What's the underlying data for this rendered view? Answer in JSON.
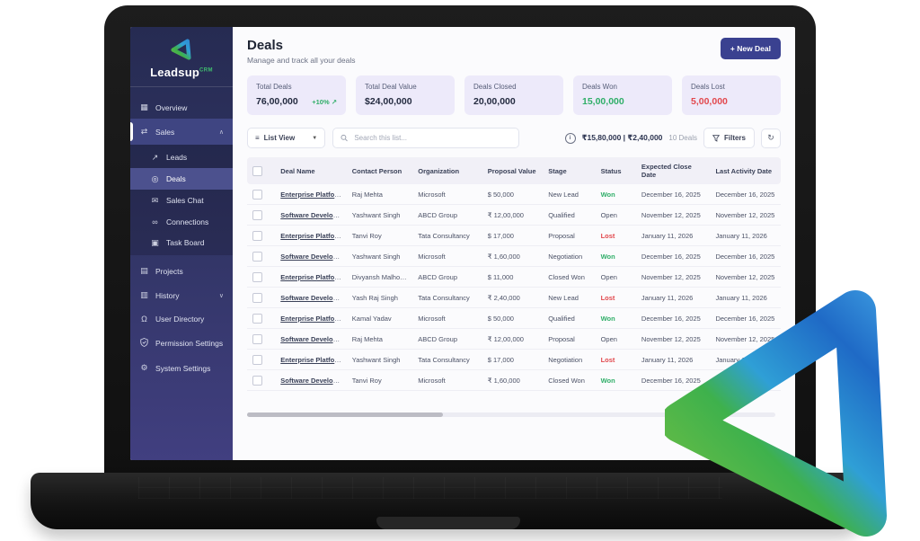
{
  "brand": {
    "name": "Leadsup",
    "suffix": "CRM"
  },
  "sidebar": {
    "items": [
      {
        "label": "Overview",
        "icon": "grid-icon"
      },
      {
        "label": "Sales",
        "icon": "swap-arrows-icon"
      }
    ],
    "sales_submenu": [
      {
        "label": "Leads",
        "icon": "trend-up-icon"
      },
      {
        "label": "Deals",
        "icon": "percent-circle-icon"
      },
      {
        "label": "Sales Chat",
        "icon": "envelope-icon"
      },
      {
        "label": "Connections",
        "icon": "people-icon"
      },
      {
        "label": "Task Board",
        "icon": "board-icon"
      }
    ],
    "secondary": [
      {
        "label": "Projects",
        "icon": "clipboard-icon"
      },
      {
        "label": "History",
        "icon": "clipboard-icon"
      },
      {
        "label": "User Directory",
        "icon": "user-plus-icon"
      },
      {
        "label": "Permission Settings",
        "icon": "shield-icon"
      },
      {
        "label": "System Settings",
        "icon": "gear-icon"
      }
    ]
  },
  "page": {
    "title": "Deals",
    "subtitle": "Manage and track all your deals",
    "new_deal_label": "+  New Deal"
  },
  "stats": [
    {
      "label": "Total Deals",
      "value": "76,00,000",
      "trend": "+10% ↗"
    },
    {
      "label": "Total Deal Value",
      "value": "$24,00,000"
    },
    {
      "label": "Deals Closed",
      "value": "20,00,000"
    },
    {
      "label": "Deals Won",
      "value": "15,00,000",
      "tone": "green"
    },
    {
      "label": "Deals Lost",
      "value": "5,00,000",
      "tone": "red"
    }
  ],
  "toolbar": {
    "view_label": "List View",
    "search_placeholder": "Search this list...",
    "summary": "₹15,80,000  |  ₹2,40,000",
    "count": "10 Deals",
    "filters_label": "Filters"
  },
  "table": {
    "columns": [
      "Deal Name",
      "Contact Person",
      "Organization",
      "Proposal Value",
      "Stage",
      "Status",
      "Expected Close Date",
      "Last Activity Date"
    ],
    "rows": [
      {
        "name": "Enterprise Platform...",
        "contact": "Raj Mehta",
        "org": "Microsoft",
        "value": "$ 50,000",
        "stage": "New Lead",
        "status": "Won",
        "expected": "December 16, 2025",
        "last": "December 16, 2025"
      },
      {
        "name": "Software Developm...",
        "contact": "Yashwant Singh",
        "org": "ABCD Group",
        "value": "₹ 12,00,000",
        "stage": "Qualified",
        "status": "Open",
        "expected": "November 12, 2025",
        "last": "November 12, 2025"
      },
      {
        "name": "Enterprise Platform...",
        "contact": "Tanvi Roy",
        "org": "Tata Consultancy",
        "value": "$ 17,000",
        "stage": "Proposal",
        "status": "Lost",
        "expected": "January 11, 2026",
        "last": "January 11, 2026"
      },
      {
        "name": "Software Developm...",
        "contact": "Yashwant Singh",
        "org": "Microsoft",
        "value": "₹ 1,60,000",
        "stage": "Negotiation",
        "status": "Won",
        "expected": "December 16, 2025",
        "last": "December 16, 2025"
      },
      {
        "name": "Enterprise Platform...",
        "contact": "Divyansh Malhotra",
        "org": "ABCD Group",
        "value": "$ 11,000",
        "stage": "Closed Won",
        "status": "Open",
        "expected": "November 12, 2025",
        "last": "November 12, 2025"
      },
      {
        "name": "Software Developm...",
        "contact": "Yash Raj Singh",
        "org": "Tata Consultancy",
        "value": "₹ 2,40,000",
        "stage": "New Lead",
        "status": "Lost",
        "expected": "January 11, 2026",
        "last": "January 11, 2026"
      },
      {
        "name": "Enterprise Platform...",
        "contact": "Kamal Yadav",
        "org": "Microsoft",
        "value": "$ 50,000",
        "stage": "Qualified",
        "status": "Won",
        "expected": "December 16, 2025",
        "last": "December 16, 2025"
      },
      {
        "name": "Software Developm...",
        "contact": "Raj Mehta",
        "org": "ABCD Group",
        "value": "₹ 12,00,000",
        "stage": "Proposal",
        "status": "Open",
        "expected": "November 12, 2025",
        "last": "November 12, 2025"
      },
      {
        "name": "Enterprise Platform...",
        "contact": "Yashwant Singh",
        "org": "Tata Consultancy",
        "value": "$ 17,000",
        "stage": "Negotiation",
        "status": "Lost",
        "expected": "January 11, 2026",
        "last": "January 11, 2026"
      },
      {
        "name": "Software Developm...",
        "contact": "Tanvi Roy",
        "org": "Microsoft",
        "value": "₹ 1,60,000",
        "stage": "Closed Won",
        "status": "Won",
        "expected": "December 16, 2025",
        "last": "December 16, 2025"
      }
    ]
  },
  "colors": {
    "accent": "#3a4190",
    "green": "#2fae68",
    "red": "#e2484d",
    "card_bg": "#edeafa",
    "sidebar_top": "#262b52",
    "sidebar_bottom": "#413f80",
    "logo_blue": "#2f7fd4",
    "logo_green": "#6abf3f"
  }
}
